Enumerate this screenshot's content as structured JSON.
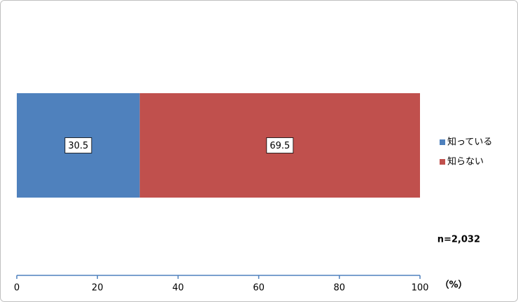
{
  "chart_data": {
    "type": "bar",
    "orientation": "horizontal",
    "stacked": true,
    "categories": [
      null
    ],
    "series": [
      {
        "name": "知っている",
        "color": "#4f81bd",
        "values": [
          30.5
        ]
      },
      {
        "name": "知らない",
        "color": "#c0504d",
        "values": [
          69.5
        ]
      }
    ],
    "xlim": [
      0,
      100
    ],
    "xticks": [
      0,
      20,
      40,
      60,
      80,
      100
    ],
    "xlabel": "（%）",
    "annotations": [
      "n=2,032"
    ],
    "axis_color": "#4f81bd",
    "legend": "right"
  }
}
